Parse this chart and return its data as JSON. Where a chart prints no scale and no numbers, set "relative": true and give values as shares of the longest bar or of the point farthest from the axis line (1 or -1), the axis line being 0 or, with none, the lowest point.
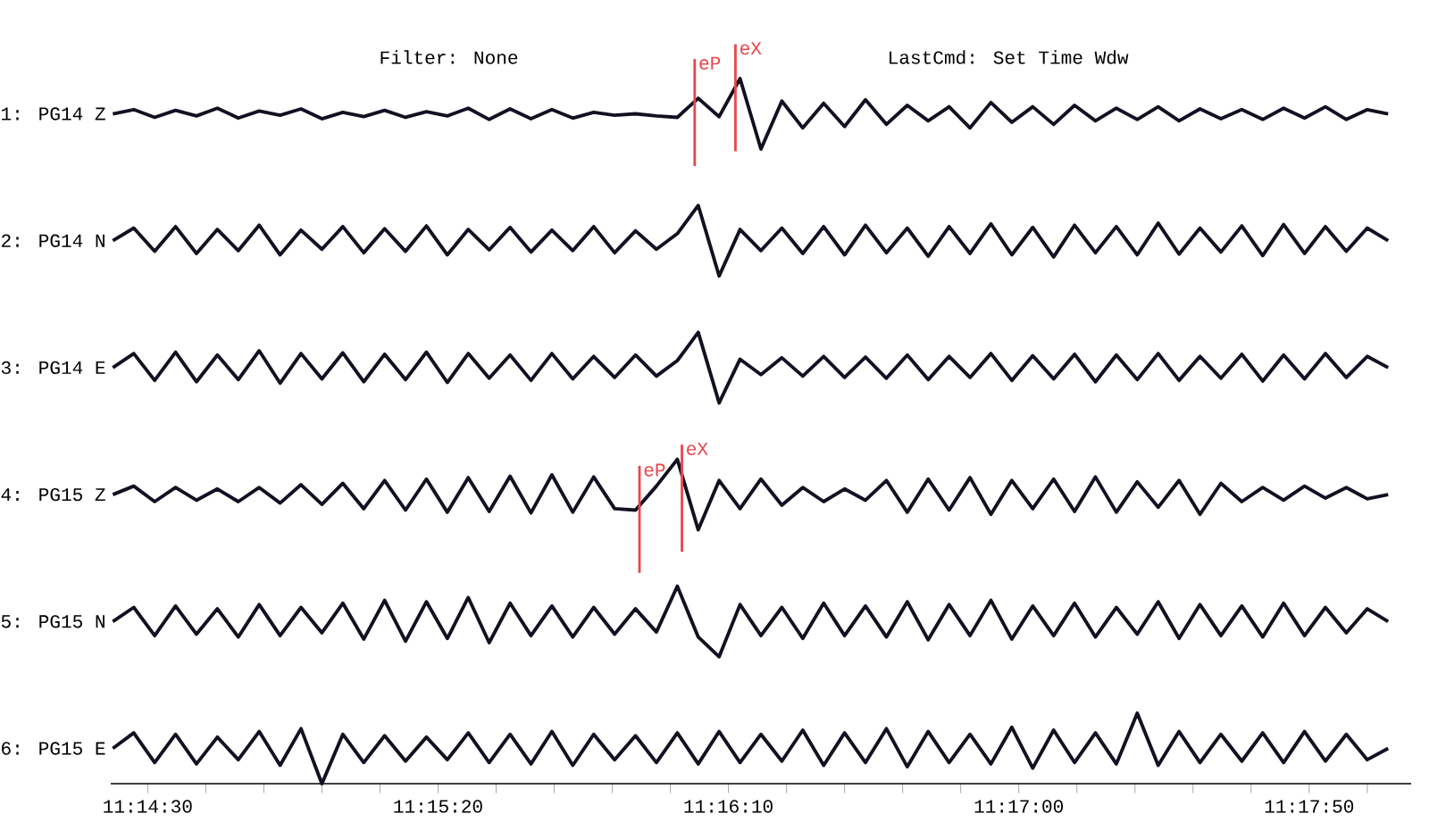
{
  "chart_data": {
    "type": "line",
    "relative": true,
    "xlim": [
      11.2399,
      11.3021
    ],
    "annotations": [
      "Filter: None",
      "LastCmd: Set Time Wdw",
      {
        "text": "eP",
        "x": 11.26783,
        "y": 0.967
      },
      {
        "text": "eX",
        "x": 11.26978,
        "y": 0.988
      },
      {
        "text": "eP",
        "x": 11.26519,
        "y": 0.39
      },
      {
        "text": "eX",
        "x": 11.26722,
        "y": 0.42
      }
    ],
    "xticks": [
      {
        "value": 11.241667,
        "label": "11:14:30"
      },
      {
        "value": 11.244444,
        "label": null
      },
      {
        "value": 11.247222,
        "label": null
      },
      {
        "value": 11.25,
        "label": null
      },
      {
        "value": 11.252778,
        "label": null
      },
      {
        "value": 11.255556,
        "label": "11:15:20"
      },
      {
        "value": 11.258333,
        "label": null
      },
      {
        "value": 11.261111,
        "label": null
      },
      {
        "value": 11.263889,
        "label": null
      },
      {
        "value": 11.266667,
        "label": null
      },
      {
        "value": 11.269444,
        "label": "11:16:10"
      },
      {
        "value": 11.272222,
        "label": null
      },
      {
        "value": 11.275,
        "label": null
      },
      {
        "value": 11.277778,
        "label": null
      },
      {
        "value": 11.280556,
        "label": null
      },
      {
        "value": 11.283333,
        "label": "11:17:00"
      },
      {
        "value": 11.286111,
        "label": null
      },
      {
        "value": 11.288889,
        "label": null
      },
      {
        "value": 11.291667,
        "label": null
      },
      {
        "value": 11.294444,
        "label": null
      },
      {
        "value": 11.297222,
        "label": "11:17:50"
      },
      {
        "value": 11.3,
        "label": null
      }
    ],
    "x": [
      11.24,
      11.241,
      11.242,
      11.243,
      11.244,
      11.245,
      11.246,
      11.247,
      11.248,
      11.249,
      11.25,
      11.251,
      11.252,
      11.253,
      11.254,
      11.255,
      11.256,
      11.257,
      11.258,
      11.259,
      11.26,
      11.261,
      11.262,
      11.263,
      11.264,
      11.265,
      11.266,
      11.267,
      11.268,
      11.269,
      11.27,
      11.271,
      11.272,
      11.273,
      11.274,
      11.275,
      11.276,
      11.277,
      11.278,
      11.279,
      11.28,
      11.281,
      11.282,
      11.283,
      11.284,
      11.285,
      11.286,
      11.287,
      11.288,
      11.289,
      11.29,
      11.291,
      11.292,
      11.293,
      11.294,
      11.295,
      11.296,
      11.297,
      11.298,
      11.299,
      11.3,
      11.301
    ],
    "series": [
      {
        "name": "1: PG14 Z",
        "color": "#111122",
        "values": [
          0.95,
          0.956,
          0.945,
          0.955,
          0.947,
          0.958,
          0.944,
          0.954,
          0.948,
          0.957,
          0.943,
          0.952,
          0.946,
          0.955,
          0.945,
          0.953,
          0.947,
          0.958,
          0.942,
          0.957,
          0.943,
          0.956,
          0.944,
          0.952,
          0.948,
          0.95,
          0.947,
          0.945,
          0.972,
          0.946,
          1.0,
          0.9,
          0.968,
          0.93,
          0.965,
          0.932,
          0.97,
          0.935,
          0.962,
          0.94,
          0.96,
          0.93,
          0.966,
          0.938,
          0.96,
          0.935,
          0.962,
          0.94,
          0.958,
          0.942,
          0.96,
          0.94,
          0.957,
          0.943,
          0.956,
          0.942,
          0.958,
          0.944,
          0.96,
          0.942,
          0.956,
          0.95
        ]
      },
      {
        "name": "2: PG14 N",
        "color": "#111122",
        "values": [
          0.77,
          0.788,
          0.755,
          0.79,
          0.752,
          0.786,
          0.756,
          0.792,
          0.75,
          0.785,
          0.758,
          0.79,
          0.753,
          0.787,
          0.755,
          0.791,
          0.75,
          0.786,
          0.757,
          0.789,
          0.754,
          0.785,
          0.756,
          0.79,
          0.753,
          0.784,
          0.758,
          0.78,
          0.82,
          0.72,
          0.786,
          0.756,
          0.788,
          0.752,
          0.79,
          0.75,
          0.792,
          0.753,
          0.788,
          0.748,
          0.79,
          0.752,
          0.794,
          0.75,
          0.789,
          0.747,
          0.792,
          0.753,
          0.79,
          0.75,
          0.795,
          0.751,
          0.788,
          0.754,
          0.791,
          0.749,
          0.793,
          0.752,
          0.79,
          0.755,
          0.788,
          0.77
        ]
      },
      {
        "name": "3: PG14 E",
        "color": "#111122",
        "values": [
          0.59,
          0.61,
          0.572,
          0.612,
          0.57,
          0.608,
          0.573,
          0.614,
          0.568,
          0.61,
          0.574,
          0.611,
          0.57,
          0.609,
          0.573,
          0.612,
          0.569,
          0.61,
          0.575,
          0.608,
          0.572,
          0.61,
          0.574,
          0.606,
          0.576,
          0.608,
          0.578,
          0.6,
          0.64,
          0.54,
          0.602,
          0.58,
          0.604,
          0.578,
          0.606,
          0.576,
          0.605,
          0.575,
          0.608,
          0.573,
          0.606,
          0.576,
          0.61,
          0.572,
          0.607,
          0.574,
          0.609,
          0.57,
          0.608,
          0.573,
          0.61,
          0.572,
          0.606,
          0.575,
          0.609,
          0.571,
          0.608,
          0.574,
          0.61,
          0.576,
          0.606,
          0.59
        ]
      },
      {
        "name": "4: PG15 Z",
        "color": "#111122",
        "values": [
          0.41,
          0.422,
          0.4,
          0.42,
          0.402,
          0.418,
          0.4,
          0.42,
          0.398,
          0.424,
          0.396,
          0.426,
          0.39,
          0.43,
          0.388,
          0.432,
          0.385,
          0.434,
          0.386,
          0.436,
          0.384,
          0.438,
          0.385,
          0.435,
          0.39,
          0.388,
          0.422,
          0.46,
          0.36,
          0.43,
          0.39,
          0.432,
          0.395,
          0.42,
          0.4,
          0.418,
          0.402,
          0.43,
          0.385,
          0.432,
          0.388,
          0.434,
          0.382,
          0.43,
          0.39,
          0.432,
          0.386,
          0.435,
          0.385,
          0.428,
          0.392,
          0.43,
          0.382,
          0.426,
          0.4,
          0.42,
          0.402,
          0.422,
          0.405,
          0.42,
          0.404,
          0.41
        ]
      },
      {
        "name": "5: PG15 N",
        "color": "#111122",
        "values": [
          0.23,
          0.25,
          0.21,
          0.252,
          0.212,
          0.248,
          0.208,
          0.254,
          0.21,
          0.25,
          0.214,
          0.256,
          0.205,
          0.26,
          0.202,
          0.258,
          0.206,
          0.264,
          0.2,
          0.256,
          0.21,
          0.252,
          0.208,
          0.25,
          0.212,
          0.248,
          0.215,
          0.28,
          0.208,
          0.18,
          0.254,
          0.21,
          0.25,
          0.206,
          0.256,
          0.21,
          0.252,
          0.208,
          0.258,
          0.204,
          0.254,
          0.21,
          0.26,
          0.205,
          0.252,
          0.21,
          0.256,
          0.208,
          0.25,
          0.212,
          0.258,
          0.206,
          0.254,
          0.21,
          0.252,
          0.208,
          0.256,
          0.21,
          0.25,
          0.214,
          0.248,
          0.23
        ]
      },
      {
        "name": "6: PG15 E",
        "color": "#111122",
        "values": [
          0.05,
          0.072,
          0.03,
          0.07,
          0.028,
          0.066,
          0.034,
          0.074,
          0.026,
          0.078,
          0.0,
          0.07,
          0.03,
          0.068,
          0.032,
          0.066,
          0.034,
          0.072,
          0.03,
          0.07,
          0.028,
          0.074,
          0.026,
          0.07,
          0.034,
          0.068,
          0.03,
          0.072,
          0.028,
          0.074,
          0.03,
          0.07,
          0.032,
          0.076,
          0.026,
          0.072,
          0.03,
          0.078,
          0.024,
          0.074,
          0.03,
          0.07,
          0.028,
          0.08,
          0.022,
          0.076,
          0.03,
          0.072,
          0.028,
          0.1,
          0.026,
          0.074,
          0.03,
          0.07,
          0.032,
          0.072,
          0.03,
          0.074,
          0.032,
          0.07,
          0.034,
          0.05
        ]
      }
    ]
  }
}
